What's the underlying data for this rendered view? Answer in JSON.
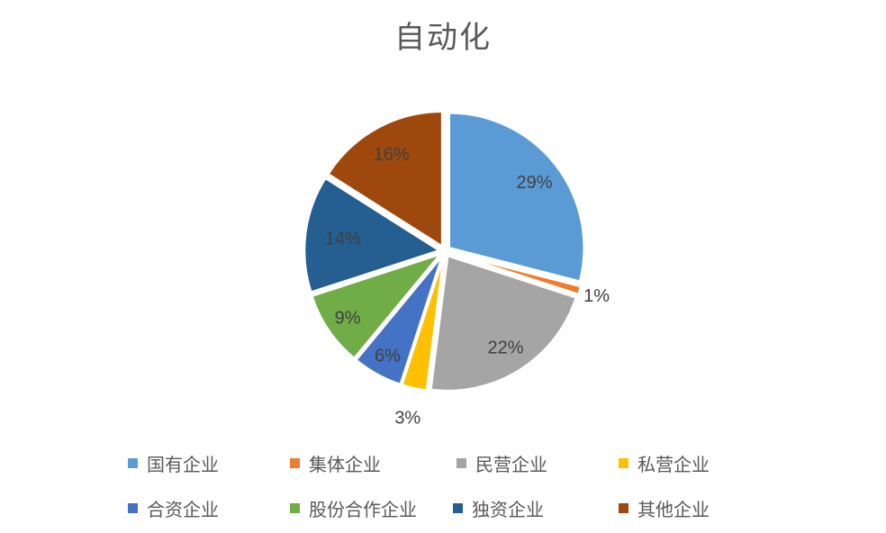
{
  "chart_data": {
    "type": "pie",
    "title": "自动化",
    "categories": [
      "国有企业",
      "集体企业",
      "民营企业",
      "私营企业",
      "合资企业",
      "股份合作企业",
      "独资企业",
      "其他企业"
    ],
    "values": [
      29,
      1,
      22,
      3,
      6,
      9,
      14,
      16
    ],
    "unit": "%",
    "data_labels": [
      "29%",
      "1%",
      "22%",
      "3%",
      "6%",
      "9%",
      "14%",
      "16%"
    ],
    "label_placement": [
      "inside",
      "outside",
      "inside",
      "outside",
      "inside",
      "inside",
      "inside",
      "inside"
    ],
    "colors": [
      "#5B9BD5",
      "#ED7D31",
      "#A5A5A5",
      "#FFC000",
      "#4472C4",
      "#70AD47",
      "#255E91",
      "#9E480E"
    ],
    "start_angle_deg": 0,
    "direction": "clockwise",
    "exploded": true,
    "legend_position": "bottom",
    "legend_rows": [
      [
        "国有企业",
        "集体企业",
        "民营企业",
        "私营企业"
      ],
      [
        "合资企业",
        "股份合作企业",
        "独资企业",
        "其他企业"
      ]
    ],
    "title_color": "#595959",
    "label_color": "#404040",
    "legend_text_color": "#595959",
    "background": "#FFFFFF"
  }
}
